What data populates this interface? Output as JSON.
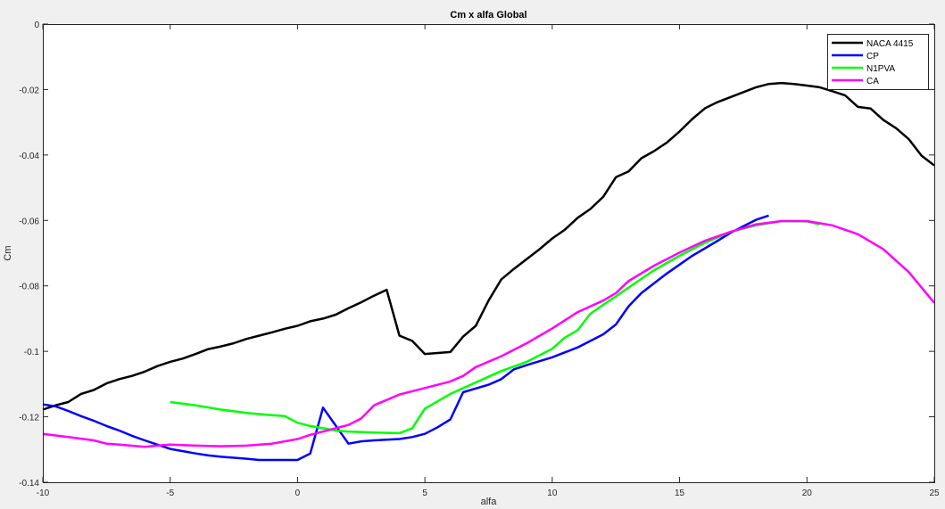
{
  "chart_data": {
    "type": "line",
    "title": "Cm x alfa Global",
    "xlabel": "alfa",
    "ylabel": "Cm",
    "xlim": [
      -10,
      25
    ],
    "ylim": [
      -0.14,
      0
    ],
    "xticks": [
      "-10",
      "-5",
      "0",
      "5",
      "10",
      "15",
      "20",
      "25"
    ],
    "yticks": [
      "0",
      "-0.02",
      "-0.04",
      "-0.06",
      "-0.08",
      "-0.1",
      "-0.12",
      "-0.14"
    ],
    "grid": false,
    "legend_position": "top-right",
    "series": [
      {
        "name": "NACA 4415",
        "color": "#000000",
        "points": [
          [
            -10,
            -0.1178
          ],
          [
            -9.5,
            -0.1165
          ],
          [
            -9,
            -0.1155
          ],
          [
            -8.5,
            -0.113
          ],
          [
            -8,
            -0.1118
          ],
          [
            -7.5,
            -0.1098
          ],
          [
            -7,
            -0.1085
          ],
          [
            -6.5,
            -0.1075
          ],
          [
            -6,
            -0.1062
          ],
          [
            -5.5,
            -0.1045
          ],
          [
            -5,
            -0.1032
          ],
          [
            -4.5,
            -0.1022
          ],
          [
            -4,
            -0.1008
          ],
          [
            -3.5,
            -0.0993
          ],
          [
            -3,
            -0.0985
          ],
          [
            -2.5,
            -0.0975
          ],
          [
            -2,
            -0.0962
          ],
          [
            -1.5,
            -0.0952
          ],
          [
            -1,
            -0.0942
          ],
          [
            -0.5,
            -0.0931
          ],
          [
            0,
            -0.0922
          ],
          [
            0.5,
            -0.0908
          ],
          [
            1,
            -0.09
          ],
          [
            1.5,
            -0.0888
          ],
          [
            2,
            -0.0868
          ],
          [
            2.5,
            -0.085
          ],
          [
            3,
            -0.083
          ],
          [
            3.5,
            -0.0812
          ],
          [
            4,
            -0.0952
          ],
          [
            4.5,
            -0.0968
          ],
          [
            5,
            -0.1008
          ],
          [
            6,
            -0.1002
          ],
          [
            6.5,
            -0.0955
          ],
          [
            7,
            -0.0922
          ],
          [
            7.5,
            -0.0845
          ],
          [
            8,
            -0.078
          ],
          [
            8.5,
            -0.0748
          ],
          [
            9,
            -0.0718
          ],
          [
            9.5,
            -0.0688
          ],
          [
            10,
            -0.0655
          ],
          [
            10.5,
            -0.0628
          ],
          [
            11,
            -0.0592
          ],
          [
            11.5,
            -0.0565
          ],
          [
            12,
            -0.0528
          ],
          [
            12.5,
            -0.0468
          ],
          [
            13,
            -0.045
          ],
          [
            13.5,
            -0.041
          ],
          [
            14,
            -0.0388
          ],
          [
            14.5,
            -0.0362
          ],
          [
            15,
            -0.0328
          ],
          [
            15.5,
            -0.029
          ],
          [
            16,
            -0.0257
          ],
          [
            16.5,
            -0.0238
          ],
          [
            17,
            -0.0223
          ],
          [
            17.5,
            -0.0208
          ],
          [
            18,
            -0.0193
          ],
          [
            18.5,
            -0.0183
          ],
          [
            19,
            -0.018
          ],
          [
            19.5,
            -0.0183
          ],
          [
            20,
            -0.0188
          ],
          [
            20.5,
            -0.0193
          ],
          [
            21,
            -0.0205
          ],
          [
            21.5,
            -0.0218
          ],
          [
            22,
            -0.0253
          ],
          [
            22.5,
            -0.0258
          ],
          [
            23,
            -0.0293
          ],
          [
            23.5,
            -0.0318
          ],
          [
            24,
            -0.0352
          ],
          [
            24.5,
            -0.0402
          ],
          [
            25,
            -0.0432
          ]
        ]
      },
      {
        "name": "CP",
        "color": "#0000ff",
        "points": [
          [
            -10,
            -0.1162
          ],
          [
            -9.5,
            -0.1168
          ],
          [
            -9,
            -0.1182
          ],
          [
            -8.5,
            -0.1198
          ],
          [
            -8,
            -0.1212
          ],
          [
            -7.5,
            -0.1228
          ],
          [
            -7,
            -0.1242
          ],
          [
            -6.5,
            -0.1258
          ],
          [
            -6,
            -0.1272
          ],
          [
            -5.5,
            -0.1285
          ],
          [
            -5,
            -0.1298
          ],
          [
            -4.5,
            -0.1305
          ],
          [
            -4,
            -0.1312
          ],
          [
            -3.5,
            -0.1318
          ],
          [
            -3,
            -0.1322
          ],
          [
            -2.5,
            -0.1325
          ],
          [
            -2,
            -0.1328
          ],
          [
            -1.5,
            -0.1332
          ],
          [
            -1,
            -0.1332
          ],
          [
            0,
            -0.1332
          ],
          [
            0.5,
            -0.1312
          ],
          [
            1,
            -0.1172
          ],
          [
            2,
            -0.1282
          ],
          [
            2.5,
            -0.1275
          ],
          [
            3,
            -0.1272
          ],
          [
            4,
            -0.1268
          ],
          [
            4.5,
            -0.1262
          ],
          [
            5,
            -0.1252
          ],
          [
            5.5,
            -0.1232
          ],
          [
            6,
            -0.1208
          ],
          [
            6.5,
            -0.1125
          ],
          [
            7.5,
            -0.1102
          ],
          [
            8,
            -0.1085
          ],
          [
            8.5,
            -0.1055
          ],
          [
            9,
            -0.1042
          ],
          [
            10,
            -0.1018
          ],
          [
            11,
            -0.0988
          ],
          [
            12,
            -0.0948
          ],
          [
            12.5,
            -0.0918
          ],
          [
            13,
            -0.0862
          ],
          [
            13.5,
            -0.0822
          ],
          [
            14,
            -0.0792
          ],
          [
            14.5,
            -0.0762
          ],
          [
            15,
            -0.0735
          ],
          [
            15.5,
            -0.0708
          ],
          [
            16,
            -0.0685
          ],
          [
            16.5,
            -0.0662
          ],
          [
            17,
            -0.0638
          ],
          [
            17.5,
            -0.0618
          ],
          [
            18,
            -0.0598
          ],
          [
            18.5,
            -0.0585
          ]
        ]
      },
      {
        "name": "N1PVA",
        "color": "#00ff00",
        "points": [
          [
            -5,
            -0.1155
          ],
          [
            -4,
            -0.1165
          ],
          [
            -3,
            -0.1178
          ],
          [
            -2,
            -0.1188
          ],
          [
            -1,
            -0.1195
          ],
          [
            -0.5,
            -0.1198
          ],
          [
            0,
            -0.1218
          ],
          [
            0.5,
            -0.1228
          ],
          [
            1,
            -0.1235
          ],
          [
            1.5,
            -0.1242
          ],
          [
            2,
            -0.1245
          ],
          [
            3,
            -0.1248
          ],
          [
            4,
            -0.125
          ],
          [
            4.5,
            -0.1235
          ],
          [
            5,
            -0.1175
          ],
          [
            6,
            -0.113
          ],
          [
            7,
            -0.1095
          ],
          [
            8,
            -0.106
          ],
          [
            9,
            -0.1032
          ],
          [
            10,
            -0.0992
          ],
          [
            10.5,
            -0.0958
          ],
          [
            11,
            -0.0935
          ],
          [
            11.5,
            -0.0885
          ],
          [
            12,
            -0.0858
          ],
          [
            12.5,
            -0.0832
          ],
          [
            13,
            -0.0805
          ],
          [
            14,
            -0.0752
          ],
          [
            15,
            -0.0708
          ],
          [
            16,
            -0.0668
          ],
          [
            17,
            -0.0635
          ],
          [
            18,
            -0.0615
          ],
          [
            19,
            -0.0602
          ],
          [
            20,
            -0.0603
          ],
          [
            20.5,
            -0.0612
          ]
        ]
      },
      {
        "name": "CA",
        "color": "#ff00ff",
        "points": [
          [
            -10,
            -0.1252
          ],
          [
            -9,
            -0.1262
          ],
          [
            -8,
            -0.1272
          ],
          [
            -7.5,
            -0.1282
          ],
          [
            -7,
            -0.1285
          ],
          [
            -6,
            -0.1292
          ],
          [
            -5.5,
            -0.1288
          ],
          [
            -5,
            -0.1285
          ],
          [
            -4,
            -0.1288
          ],
          [
            -3,
            -0.129
          ],
          [
            -2,
            -0.1288
          ],
          [
            -1,
            -0.1282
          ],
          [
            0,
            -0.1268
          ],
          [
            0.5,
            -0.1255
          ],
          [
            1,
            -0.1245
          ],
          [
            1.5,
            -0.1235
          ],
          [
            2,
            -0.1225
          ],
          [
            2.5,
            -0.1205
          ],
          [
            3,
            -0.1165
          ],
          [
            4,
            -0.1132
          ],
          [
            5,
            -0.1112
          ],
          [
            6,
            -0.1092
          ],
          [
            6.5,
            -0.1075
          ],
          [
            7,
            -0.1048
          ],
          [
            8,
            -0.1015
          ],
          [
            9,
            -0.0975
          ],
          [
            10,
            -0.093
          ],
          [
            11,
            -0.088
          ],
          [
            12,
            -0.0845
          ],
          [
            12.5,
            -0.0822
          ],
          [
            13,
            -0.0785
          ],
          [
            14,
            -0.0738
          ],
          [
            15,
            -0.0698
          ],
          [
            16,
            -0.0662
          ],
          [
            17,
            -0.0635
          ],
          [
            18,
            -0.0612
          ],
          [
            19,
            -0.0602
          ],
          [
            20,
            -0.0602
          ],
          [
            21,
            -0.0615
          ],
          [
            22,
            -0.0642
          ],
          [
            23,
            -0.0688
          ],
          [
            24,
            -0.0758
          ],
          [
            25,
            -0.0852
          ]
        ]
      }
    ]
  }
}
